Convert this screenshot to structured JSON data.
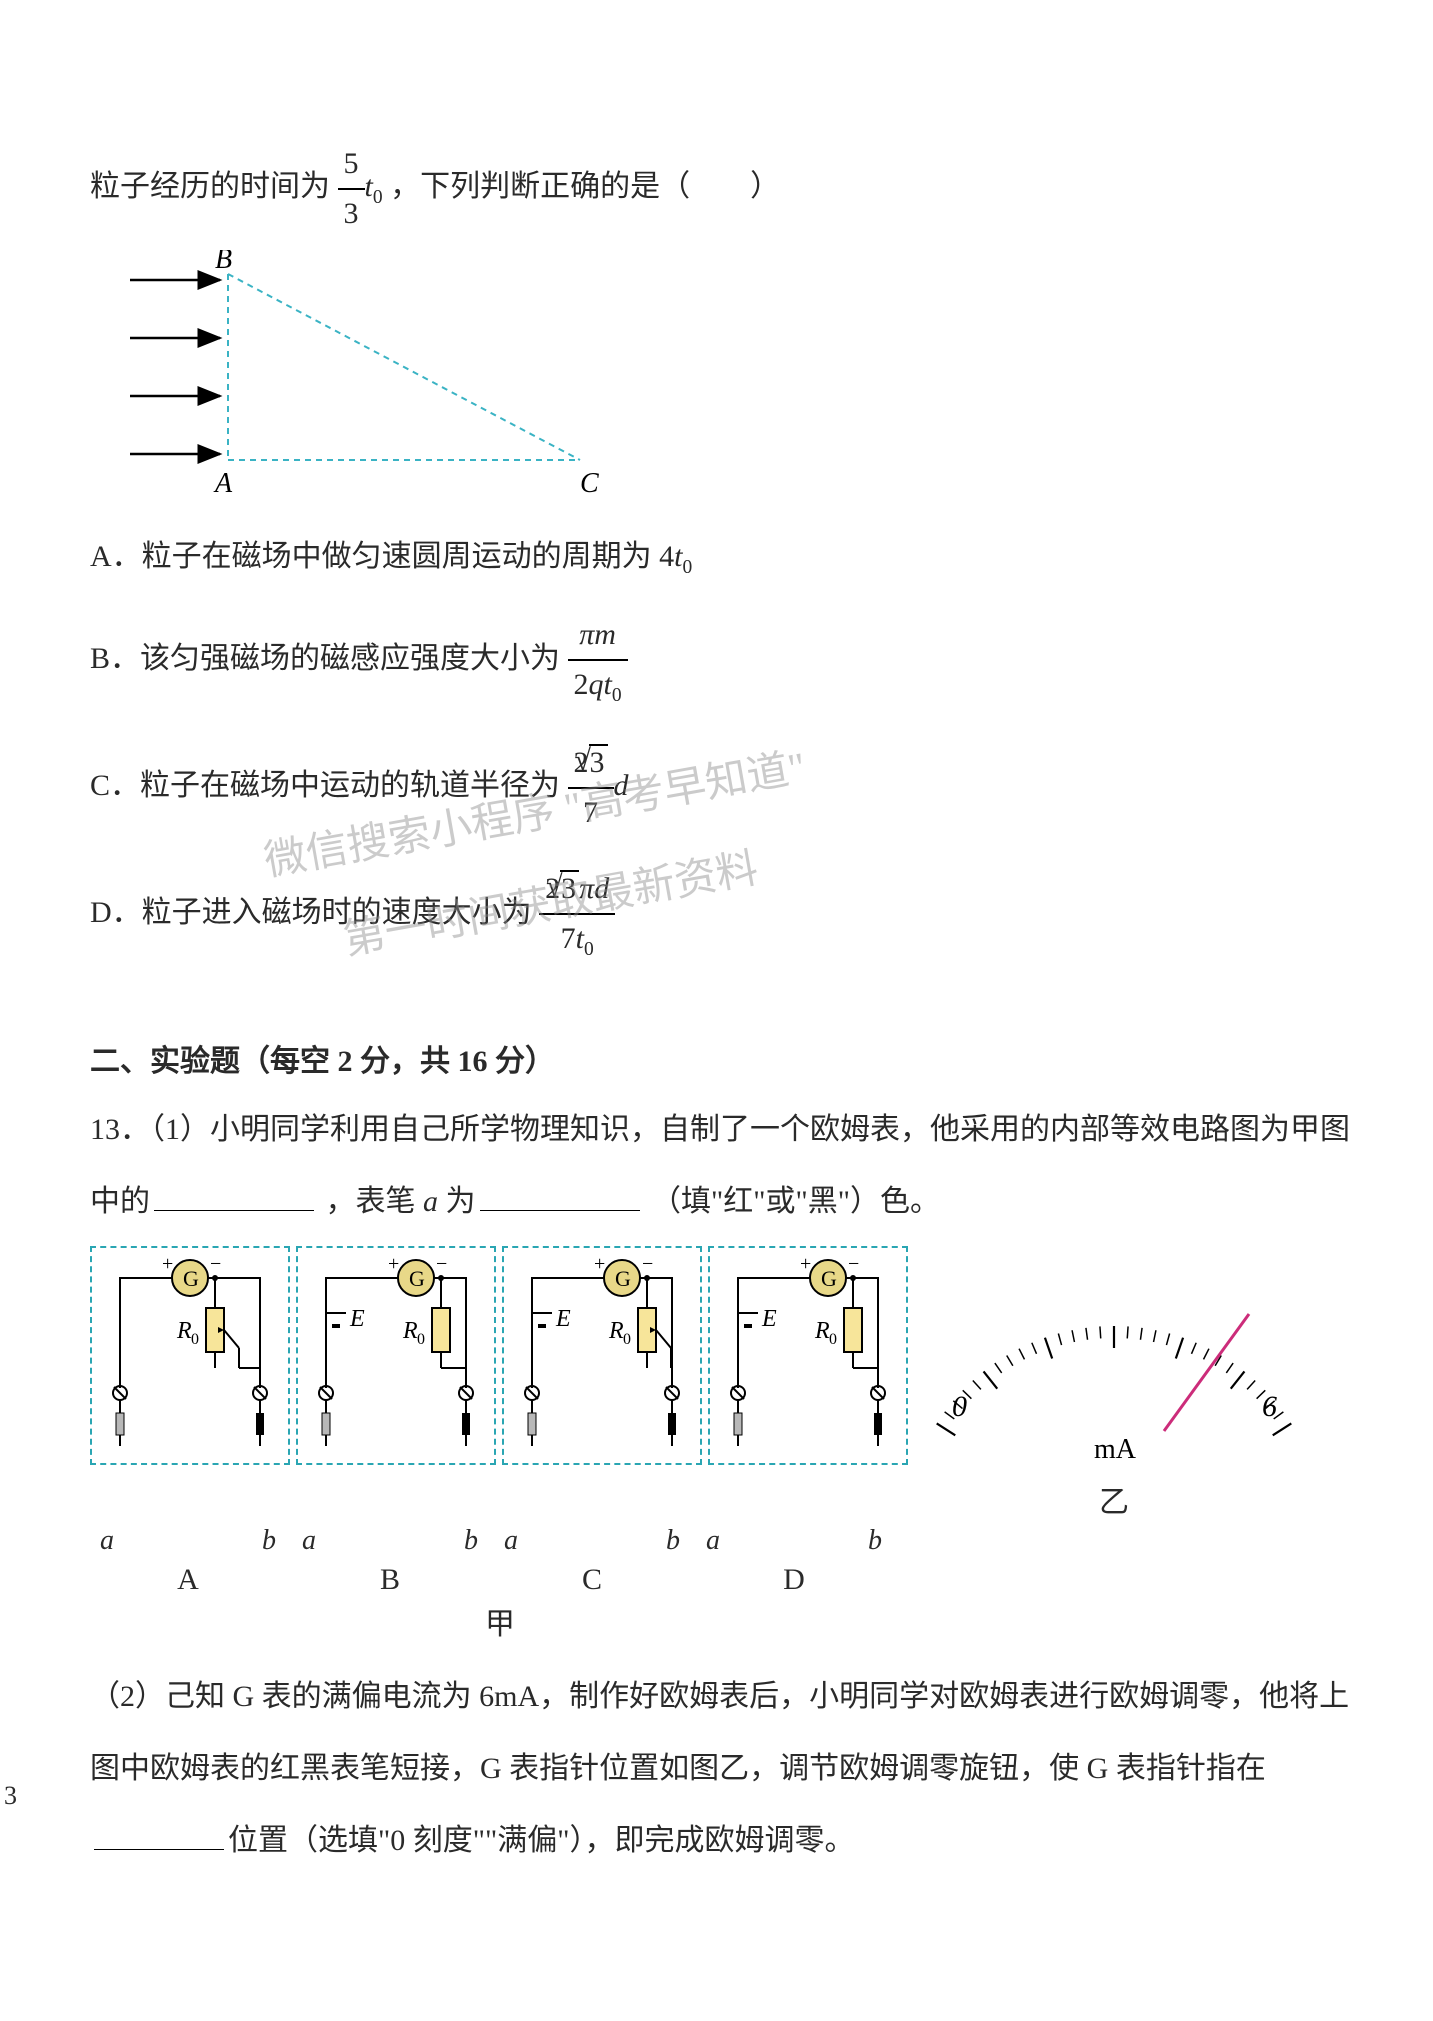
{
  "intro": {
    "text_before_frac": "粒子经历的时间为",
    "frac_num": "5",
    "frac_den": "3",
    "t_sub": "t",
    "t_sub0": "0",
    "text_after": "，下列判断正确的是（　　）"
  },
  "triangle": {
    "A": "A",
    "B": "B",
    "C": "C",
    "stroke_color": "#3ab3c4",
    "dash": "6,5",
    "arrow_color": "#000000"
  },
  "options": {
    "A": {
      "prefix": "A．粒子在磁场中做匀速圆周运动的周期为 4",
      "tvar": "t",
      "sub": "0"
    },
    "B": {
      "prefix": "B．该匀强磁场的磁感应强度大小为",
      "frac_num_1": "π",
      "frac_num_2": "m",
      "frac_den_1": "2",
      "frac_den_2": "qt",
      "frac_den_sub": "0"
    },
    "C": {
      "prefix": "C．粒子在磁场中运动的轨道半径为",
      "num_coeff": "2",
      "num_sqrt": "3",
      "den": "7",
      "trail": "d"
    },
    "D": {
      "prefix": "D．粒子进入磁场时的速度大小为",
      "num_coeff": "2",
      "num_sqrt": "3",
      "num_trail": "πd",
      "den_coeff": "7",
      "den_t": "t",
      "den_sub": "0"
    }
  },
  "section2": {
    "header": "二、实验题（每空 2 分，共 16 分）"
  },
  "q13": {
    "part1_a": "13．（1）小明同学利用自己所学物理知识，自制了一个欧姆表，他采用的内部等效电路图为甲图",
    "part1_b_before_blank": "中的",
    "part1_b_mid": "，表笔 ",
    "part1_b_a": "a",
    "part1_b_mid2": " 为",
    "part1_b_after": "（填\"红\"或\"黑\"）色。",
    "circuits": {
      "labels": [
        "A",
        "B",
        "C",
        "D"
      ],
      "G": "G",
      "plus": "+",
      "minus": "−",
      "R0_R": "R",
      "R0_0": "0",
      "E": "E",
      "a": "a",
      "b": "b",
      "box_border": "#2aa6b3",
      "wire_color": "#000000",
      "resistor_fill": "#f7e59a",
      "resistor_stroke": "#000000",
      "galv_fill": "#e8d888"
    },
    "gauge": {
      "zero": "0",
      "six": "6",
      "unit": "mA",
      "needle_color": "#cc2c7a",
      "tick_color": "#000000"
    },
    "jia": "甲",
    "yi": "乙",
    "part2_a": "（2）己知 G 表的满偏电流为 6mA，制作好欧姆表后，小明同学对欧姆表进行欧姆调零，他将上",
    "part2_b": "图中欧姆表的红黑表笔短接，G 表指针位置如图乙，调节欧姆调零旋钮，使 G 表指针指在",
    "part2_c_after": "位置（选填\"0 刻度\"\"满偏\"），即完成欧姆调零。"
  },
  "watermark": {
    "line1": "微信搜索小程序 \"高考早知道\"",
    "line2": "第一时间获取最新资料"
  },
  "pagenum": "3"
}
